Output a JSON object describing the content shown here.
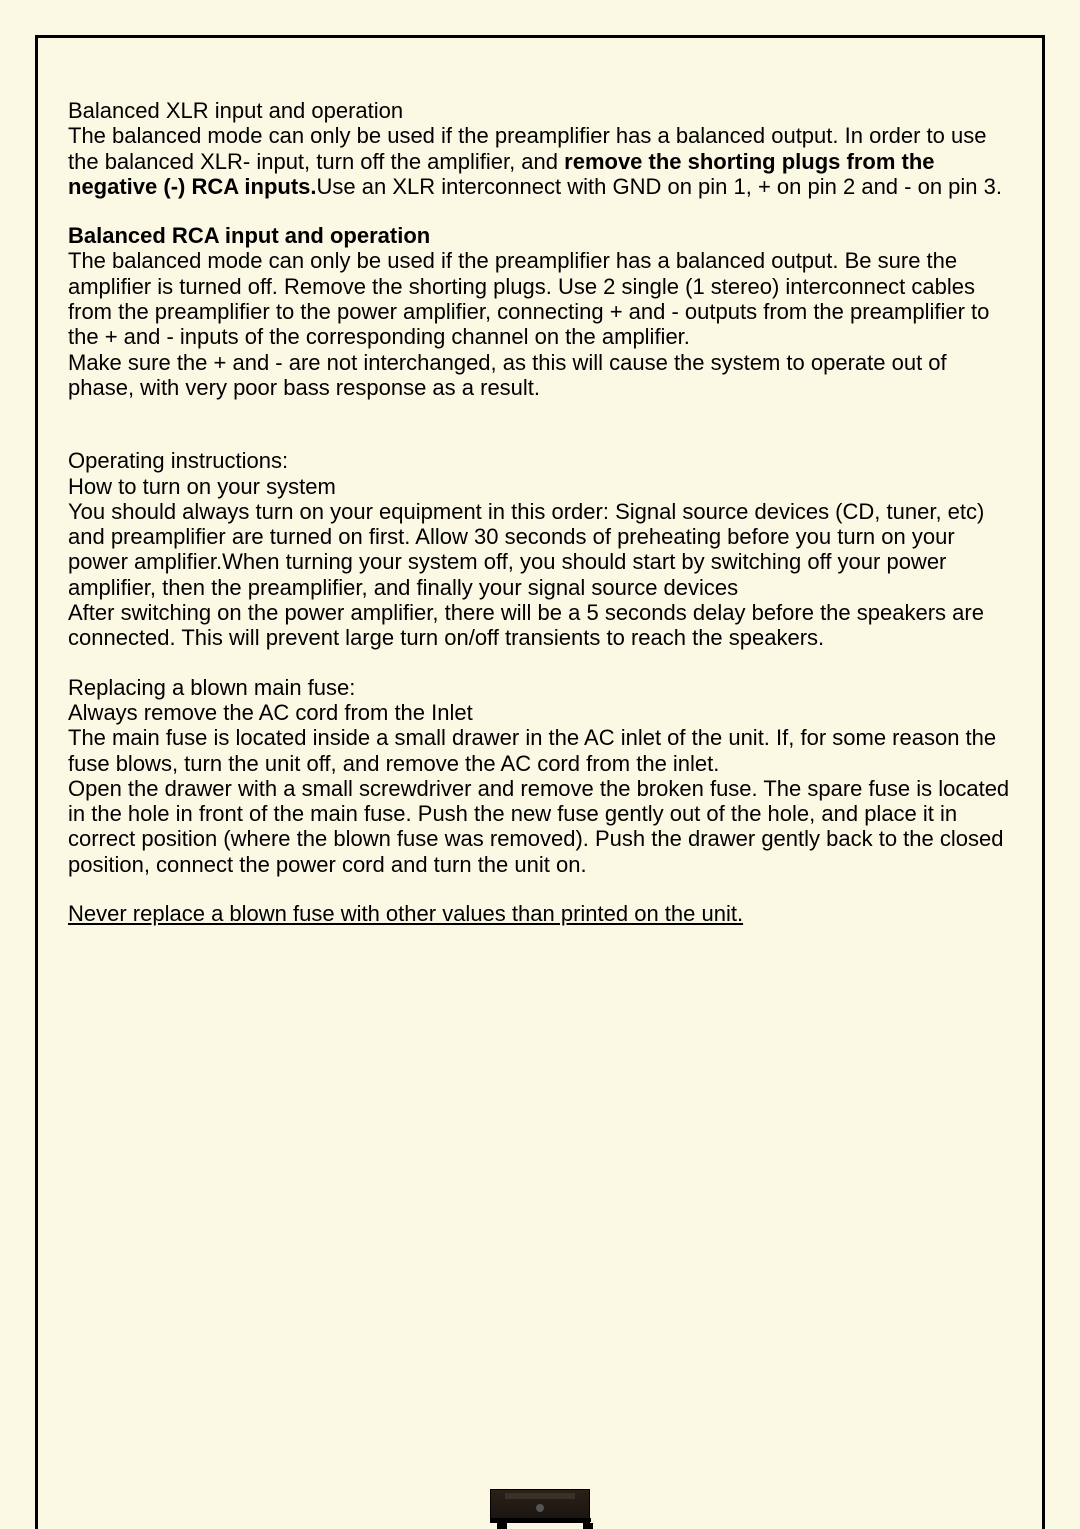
{
  "page": {
    "background_color": "#fbf9e4",
    "border_color": "#000000",
    "text_color": "#000000",
    "font_size_pt": 16
  },
  "section1": {
    "title": "Balanced XLR input and operation",
    "body_part1": "The balanced mode can only be used if the preamplifier has a balanced output. In order to use the balanced XLR- input, turn off the amplifier, and  ",
    "body_bold": "remove the shorting plugs from the negative (-) RCA inputs.",
    "body_part2": "Use an  XLR interconnect with GND on pin 1, + on pin 2 and - on pin 3."
  },
  "section2": {
    "title": "Balanced RCA input and operation",
    "body": "The balanced mode can only be used if the preamplifier has a balanced output. Be sure the amplifier is  turned off. Remove the shorting plugs. Use 2 single (1 stereo) interconnect cables from the preamplifier to the power amplifier, connecting + and - outputs from the preamplifier to the + and - inputs of the corresponding channel on the amplifier.",
    "body2": "Make sure the + and - are not interchanged, as this will cause the system to operate out of phase, with very poor bass response as a result."
  },
  "section3": {
    "title": "Operating instructions:",
    "subtitle": "How to turn on your system",
    "body": "You should always turn on your equipment in this order: Signal source devices (CD, tuner, etc) and preamplifier are turned on first. Allow 30 seconds of preheating before you turn on your power amplifier.When turning your system off, you should start by switching off your power amplifier, then the preamplifier, and finally your signal source devices",
    "body2": "After switching on the power amplifier, there will be a 5 seconds delay before the speakers are connected. This will prevent large turn on/off transients to reach the speakers."
  },
  "section4": {
    "title": "Replacing a blown main fuse:",
    "subtitle": "Always remove the AC cord from the Inlet",
    "body": "The main fuse is located inside a small drawer in the AC inlet of the unit. If, for some reason the fuse blows, turn the unit off, and remove the AC cord from the inlet.",
    "body2": "Open the drawer with a small screwdriver and remove the broken fuse. The spare fuse is located in the hole in front of the main fuse. Push the new fuse gently out of the hole, and place it in correct position (where the blown fuse was removed). Push  the drawer gently back to the closed position, connect the power cord and turn the unit on."
  },
  "warning": {
    "text": "Never replace a blown fuse with other values than printed on the unit."
  }
}
